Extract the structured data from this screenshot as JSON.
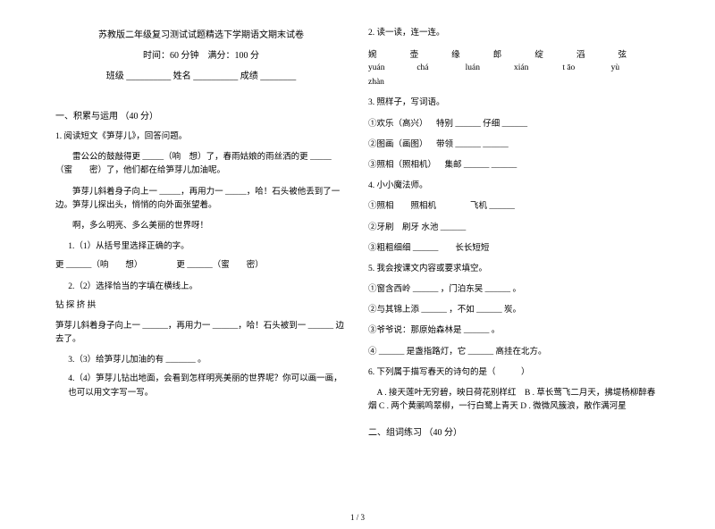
{
  "header": {
    "title": "苏教版二年级复习测试试题精选下学期语文期末试卷",
    "time_score": "时间：60 分钟 满分：100 分",
    "blanks": "班级 __________ 姓名 __________ 成绩 ________"
  },
  "left": {
    "section1": "一、积累与运用 （40 分）",
    "q1_title": "1.  阅读短文《笋芽儿》，回答问题。",
    "p1": "  雷公公的鼓敲得更 _____（响 想）了，春雨姑娘的雨丝洒的更 _____（蜜  密）了，他们都在给笋芽儿加油呢。",
    "p2": "  笋芽儿斜着身子向上一 _____，再用力一 _____，哈！石头被他丢到了一边。笋芽儿探出头，悄悄的向外面张望着。",
    "p3": "  啊，多么明亮、多么美丽的世界呀！",
    "sub1": "1.（1）从括号里选择正确的字。",
    "sub1_line": "更 ______（响  想）    更 ______（蜜  密）",
    "sub2": "2.（2）选择恰当的字填在横线上。",
    "sub2_chars": "钻  探  挤  拱",
    "sub2_line": "笋芽儿斜着身子向上一  ______，再用力一 ______，哈！石头被到一 ______ 边去了。",
    "sub3": "3.（3）给笋芽儿加油的有 _______ 。",
    "sub4": "4.（4）笋芽儿钻出地面，会看到怎样明亮美丽的世界呢？你可以画一画，也可以用文字写一写。"
  },
  "right": {
    "q2_title": "2.  读一读，连一连。",
    "pinyin_chars": [
      "婉",
      "壶",
      "缘",
      "郎",
      "绽",
      "滔",
      "弦"
    ],
    "pinyin_py": [
      "yuán",
      "chá",
      "luán",
      "xián",
      "t āo",
      "yù"
    ],
    "pinyin_py2": "zhàn",
    "q3_title": "3.  照样子，写词语。",
    "q3_1": "①欢乐（高兴） 特别 ______ 仔细 ______",
    "q3_2": "②图画（画图） 带领 ______ ______",
    "q3_3": "③照相（照相机） 集邮 ______ ______",
    "q4_title": "4.  小小魔法师。",
    "q4_1": "①照相  照相机    飞机 ______",
    "q4_2": "②牙刷 刷牙  水池 ______",
    "q4_3": "③粗粗细细 ______  长长短短",
    "q5_title": "5.  我会按课文内容或要求填空。",
    "q5_1": "①窗含西岭 ______ ，门泊东吴 ______ 。",
    "q5_2": "②与其锦上添 ______ ，不如 ______ 炭。",
    "q5_3": "③爷爷说：那原始森林是 ______ 。",
    "q5_4": "④ ______ 是盏指路灯，它 ______ 高挂在北方。",
    "q6_title": "6.  下列属于描写春天的诗句的是（   ）",
    "q6_opts": " A . 接天莲叶无穷碧，映日荷花别样红 B . 草长莺飞二月天，拂堤杨柳醉春烟 C . 两个黄鹂鸣翠柳，一行白鹭上青天 D . 微微风簇浪，散作满河星",
    "section2": "二、组词练习 （40 分）"
  },
  "pagenum": "1 / 3"
}
